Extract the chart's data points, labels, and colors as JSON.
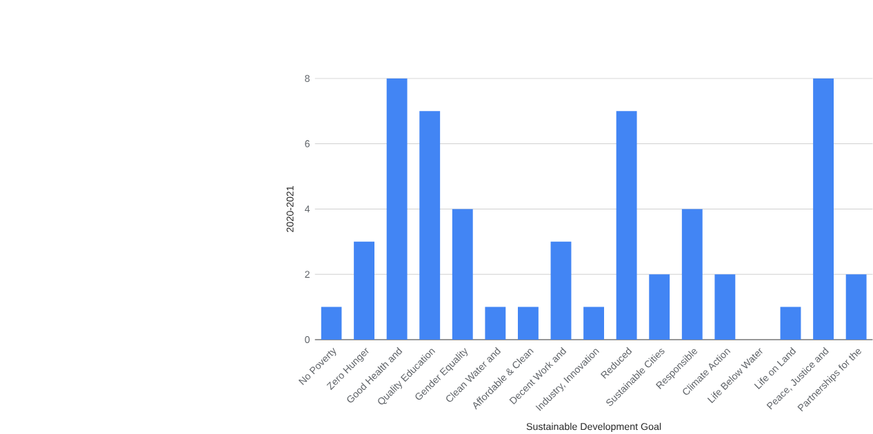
{
  "chart_data": {
    "type": "bar",
    "xlabel": "Sustainable Development Goal",
    "ylabel": "2020-2021",
    "categories": [
      "No Poverty",
      "Zero Hunger",
      "Good Health and",
      "Quality Education",
      "Gender Equality",
      "Clean Water and",
      "Affordable & Clean",
      "Decent Work and",
      "Industry, Innovation",
      "Reduced",
      "Sustainable Cities",
      "Responsible",
      "Climate Action",
      "Life Below Water",
      "Life on Land",
      "Peace, Justice and",
      "Partnerships for the"
    ],
    "values": [
      1,
      3,
      8,
      7,
      4,
      1,
      1,
      3,
      1,
      7,
      2,
      4,
      2,
      0,
      1,
      8,
      2
    ],
    "color": "#4285f4",
    "ylim": [
      0,
      8
    ],
    "yticks": [
      0,
      2,
      4,
      6,
      8
    ],
    "grid": "y"
  }
}
